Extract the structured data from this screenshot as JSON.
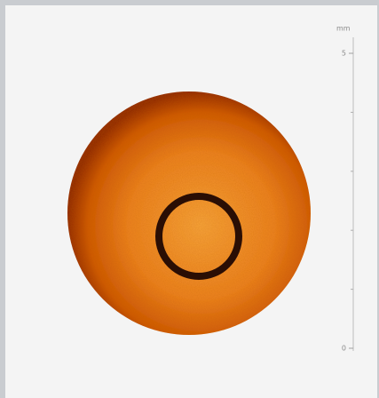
{
  "scale_bar": {
    "unit": "mm",
    "range": [
      0,
      5
    ],
    "ticks": [
      0,
      5
    ],
    "minor_ticks": [
      1,
      2,
      3,
      4
    ]
  }
}
